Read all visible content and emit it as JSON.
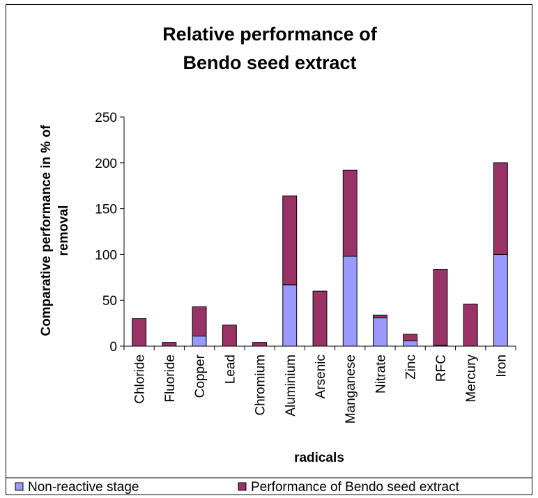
{
  "chart_data": {
    "type": "bar",
    "stacked": true,
    "title_lines": [
      "Relative performance of",
      "Bendo seed extract"
    ],
    "xlabel": "radicals",
    "ylabel_lines": [
      "Comparative performance in % of",
      "removal"
    ],
    "ylim": [
      0,
      250
    ],
    "yticks": [
      "0",
      "50",
      "100",
      "150",
      "200",
      "250"
    ],
    "grid": false,
    "legend_position": "bottom",
    "categories": [
      "Chloride",
      "Fluoride",
      "Copper",
      "Lead",
      "Chromium",
      "Aluminium",
      "Arsenic",
      "Manganese",
      "Nitrate",
      "Zinc",
      "RFC",
      "Mercury",
      "Iron"
    ],
    "series": [
      {
        "name": "Non-reactive stage",
        "color": "#9999FF",
        "values": [
          0,
          0,
          11,
          0,
          0,
          67,
          0,
          98,
          31,
          6,
          1,
          0,
          100
        ]
      },
      {
        "name": "Performance of Bendo seed extract",
        "color": "#993366",
        "values": [
          30,
          4,
          32,
          23,
          4,
          97,
          60,
          94,
          3,
          7,
          83,
          46,
          100
        ]
      }
    ]
  }
}
